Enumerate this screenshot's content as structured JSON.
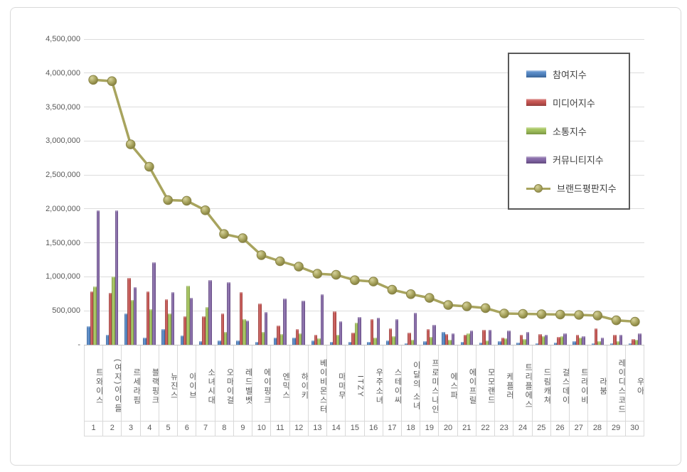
{
  "card": {
    "border_color": "#d9d9d9",
    "background": "#ffffff"
  },
  "axis": {
    "y_labels_top_down": [
      "4,500,000",
      "4,000,000",
      "3,500,000",
      "3,000,000",
      "2,500,000",
      "2,000,000",
      "1,500,000",
      "1,000,000",
      "500,000",
      "-"
    ],
    "grid_color": "#dcdcdc",
    "label_color": "#595959"
  },
  "legend": {
    "border_color": "#595959",
    "text_color": "#404040"
  },
  "chart_data": {
    "type": "bar",
    "subtype": "grouped-bars-with-line-overlay",
    "title": "",
    "xlabel": "",
    "ylabel": "",
    "ylim": [
      0,
      4500000
    ],
    "ytick_step": 500000,
    "grid": true,
    "legend_position": "top-right",
    "categories": [
      "트와이스",
      "(여자)아이들",
      "르세라핌",
      "블랙핑크",
      "뉴진스",
      "아이브",
      "소녀시대",
      "오마이걸",
      "레드벨벳",
      "에이핑크",
      "엔믹스",
      "하이키",
      "베이비몬스터",
      "마마무",
      "ITZY",
      "우주소녀",
      "스테이씨",
      "이달의 소녀",
      "프로미스나인",
      "에스파",
      "에이프릴",
      "모모랜드",
      "케플러",
      "트리플에스",
      "드림캐쳐",
      "걸스데이",
      "트라이비",
      "라붐",
      "레이디스코드",
      "우아"
    ],
    "ranks": [
      "1",
      "2",
      "3",
      "4",
      "5",
      "6",
      "7",
      "8",
      "9",
      "10",
      "11",
      "12",
      "13",
      "14",
      "15",
      "16",
      "17",
      "18",
      "19",
      "20",
      "21",
      "22",
      "23",
      "24",
      "25",
      "26",
      "27",
      "28",
      "29",
      "30"
    ],
    "series": [
      {
        "name": "참여지수",
        "type": "bar",
        "color": "#4F81BD",
        "light": "#6f9cd4",
        "dark": "#3a6496",
        "values": [
          270000,
          150000,
          460000,
          100000,
          230000,
          140000,
          50000,
          60000,
          60000,
          40000,
          110000,
          100000,
          60000,
          40000,
          40000,
          40000,
          60000,
          25000,
          50000,
          190000,
          40000,
          35000,
          50000,
          35000,
          25000,
          35000,
          55000,
          25000,
          20000,
          20000
        ]
      },
      {
        "name": "미디어지수",
        "type": "bar",
        "color": "#C0504D",
        "light": "#d4716e",
        "dark": "#94403e",
        "values": [
          790000,
          760000,
          980000,
          790000,
          670000,
          420000,
          420000,
          460000,
          770000,
          610000,
          280000,
          230000,
          150000,
          490000,
          180000,
          380000,
          240000,
          180000,
          230000,
          160000,
          150000,
          225000,
          110000,
          150000,
          155000,
          115000,
          145000,
          240000,
          145000,
          85000
        ]
      },
      {
        "name": "소통지수",
        "type": "bar",
        "color": "#9BBB59",
        "light": "#b5d172",
        "dark": "#7a9544",
        "values": [
          860000,
          1000000,
          660000,
          520000,
          460000,
          870000,
          560000,
          190000,
          380000,
          190000,
          160000,
          170000,
          95000,
          150000,
          320000,
          110000,
          130000,
          70000,
          120000,
          70000,
          165000,
          60000,
          95000,
          85000,
          125000,
          125000,
          110000,
          55000,
          50000,
          70000
        ]
      },
      {
        "name": "커뮤니티지수",
        "type": "bar",
        "color": "#8064A2",
        "light": "#9a82b8",
        "dark": "#62497e",
        "values": [
          1980000,
          1980000,
          850000,
          1210000,
          770000,
          690000,
          950000,
          920000,
          360000,
          480000,
          680000,
          650000,
          740000,
          350000,
          410000,
          400000,
          380000,
          470000,
          290000,
          165000,
          210000,
          220000,
          205000,
          185000,
          145000,
          170000,
          130000,
          110000,
          145000,
          165000
        ]
      },
      {
        "name": "브랜드평판지수",
        "type": "line",
        "color": "#A8A45E",
        "marker_fill_light": "#d6d29b",
        "marker_fill_dark": "#807b3c",
        "marker_stroke": "#8a8548",
        "values": [
          3900000,
          3880000,
          2950000,
          2620000,
          2130000,
          2120000,
          1980000,
          1630000,
          1570000,
          1320000,
          1230000,
          1150000,
          1045000,
          1030000,
          950000,
          930000,
          810000,
          745000,
          690000,
          585000,
          565000,
          540000,
          460000,
          455000,
          450000,
          445000,
          440000,
          430000,
          360000,
          340000
        ]
      }
    ]
  }
}
